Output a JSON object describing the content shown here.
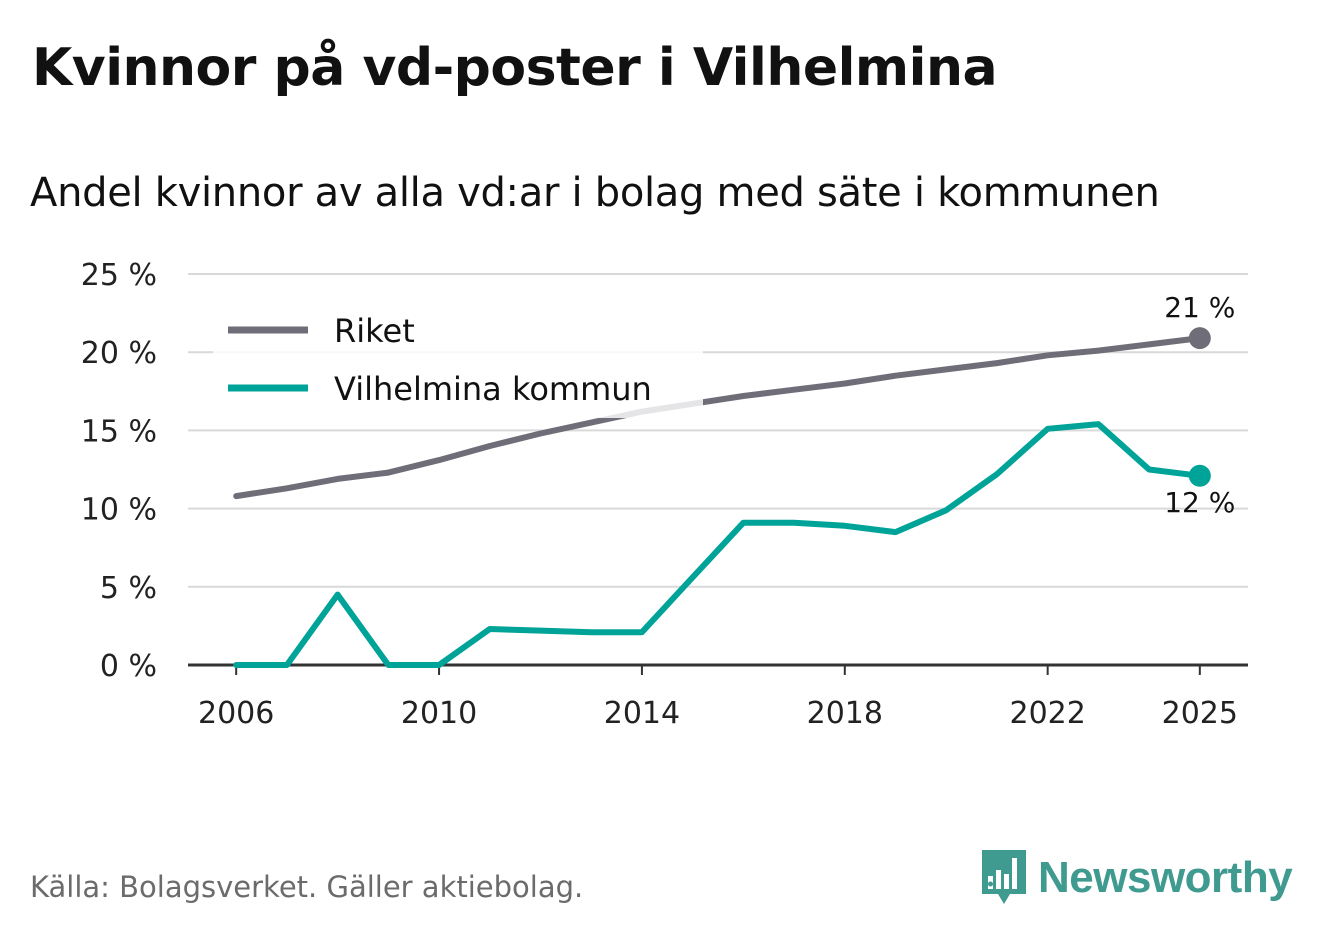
{
  "title": "Kvinnor på vd-poster i Vilhelmina",
  "subtitle": "Andel kvinnor av alla vd:ar i bolag med säte i kommunen",
  "source": "Källa: Bolagsverket. Gäller aktiebolag.",
  "brand": "Newsworthy",
  "colors": {
    "riket": "#6f6e78",
    "vilhelmina": "#00a398",
    "grid": "#d9d9d9",
    "axis": "#333333",
    "brand": "#3f9a8f"
  },
  "chart_data": {
    "type": "line",
    "title": "Kvinnor på vd-poster i Vilhelmina",
    "subtitle": "Andel kvinnor av alla vd:ar i bolag med säte i kommunen",
    "xlabel": "",
    "ylabel": "",
    "x": [
      2006,
      2007,
      2008,
      2009,
      2010,
      2011,
      2012,
      2013,
      2014,
      2015,
      2016,
      2017,
      2018,
      2019,
      2020,
      2021,
      2022,
      2023,
      2024,
      2025
    ],
    "xlim": [
      2005.05,
      2025.95
    ],
    "ylim": [
      0,
      25
    ],
    "x_ticks": [
      2006,
      2010,
      2014,
      2018,
      2022,
      2025
    ],
    "x_tick_labels": [
      "2006",
      "2010",
      "2014",
      "2018",
      "2022",
      "2025"
    ],
    "y_ticks": [
      0,
      5,
      10,
      15,
      20,
      25
    ],
    "y_tick_labels": [
      "0 %",
      "5 %",
      "10 %",
      "15 %",
      "20 %",
      "25 %"
    ],
    "grid": true,
    "legend_position": "top-left",
    "series": [
      {
        "name": "Riket",
        "color": "#6f6e78",
        "values": [
          10.8,
          11.3,
          11.9,
          12.3,
          13.1,
          14.0,
          14.8,
          15.5,
          16.2,
          16.7,
          17.2,
          17.6,
          18.0,
          18.5,
          18.9,
          19.3,
          19.8,
          20.1,
          20.5,
          20.9
        ],
        "end_label": "21 %",
        "end_label_position": "above"
      },
      {
        "name": "Vilhelmina kommun",
        "color": "#00a398",
        "values": [
          0,
          0,
          4.5,
          0,
          0,
          2.3,
          2.2,
          2.1,
          2.1,
          5.6,
          9.1,
          9.1,
          8.9,
          8.5,
          9.9,
          12.2,
          15.1,
          15.4,
          12.5,
          12.1
        ],
        "end_label": "12 %",
        "end_label_position": "below"
      }
    ]
  }
}
